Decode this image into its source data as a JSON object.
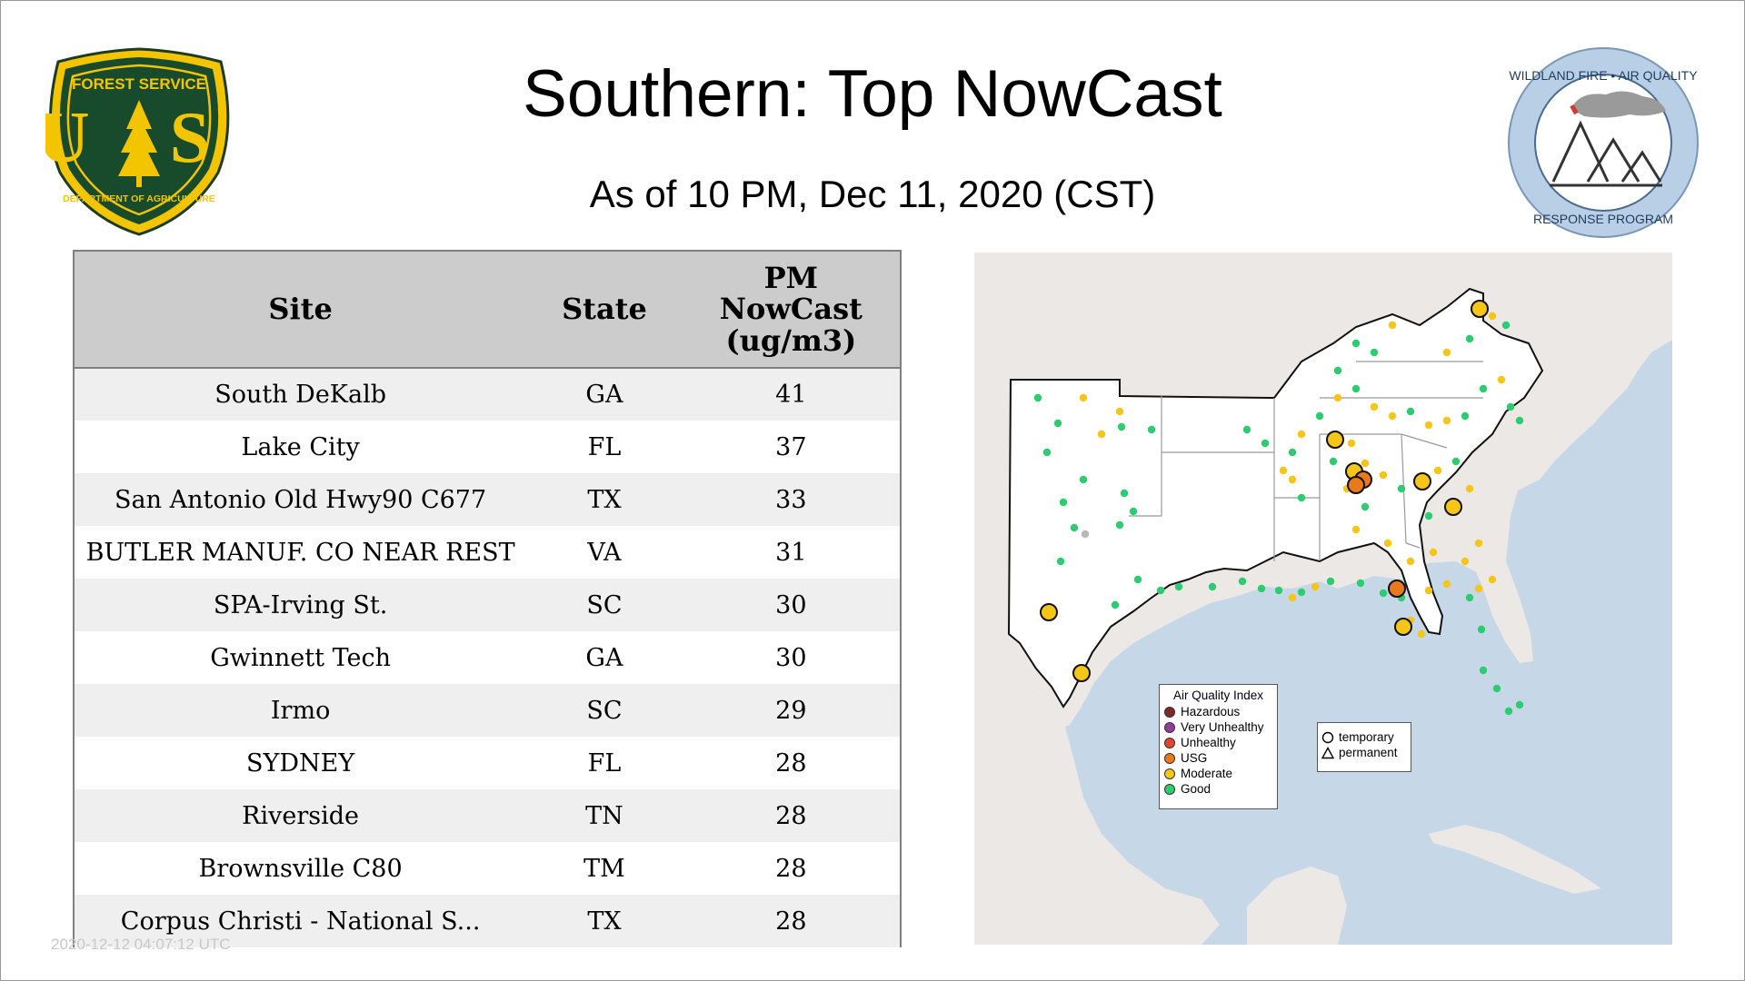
{
  "header": {
    "title": "Southern: Top NowCast",
    "subtitle": "As of 10 PM, Dec 11, 2020 (CST)"
  },
  "logos": {
    "forest_service": {
      "top_text": "FOREST SERVICE",
      "letters": "U S",
      "bottom_text": "DEPARTMENT OF AGRICULTURE"
    },
    "wildland_fire": {
      "top_text": "WILDLAND FIRE • AIR QUALITY",
      "bottom_text": "RESPONSE PROGRAM"
    }
  },
  "table": {
    "headers": {
      "site": "Site",
      "state": "State",
      "value": "PM NowCast (ug/m3)"
    },
    "rows": [
      {
        "site": "South DeKalb",
        "state": "GA",
        "value": "41"
      },
      {
        "site": "Lake City",
        "state": "FL",
        "value": "37"
      },
      {
        "site": "San Antonio Old Hwy90 C677",
        "state": "TX",
        "value": "33"
      },
      {
        "site": "BUTLER MANUF. CO NEAR REST",
        "state": "VA",
        "value": "31"
      },
      {
        "site": "SPA-Irving St.",
        "state": "SC",
        "value": "30"
      },
      {
        "site": "Gwinnett Tech",
        "state": "GA",
        "value": "30"
      },
      {
        "site": "Irmo",
        "state": "SC",
        "value": "29"
      },
      {
        "site": "SYDNEY",
        "state": "FL",
        "value": "28"
      },
      {
        "site": "Riverside",
        "state": "TN",
        "value": "28"
      },
      {
        "site": "Brownsville C80",
        "state": "TM",
        "value": "28"
      },
      {
        "site": "Corpus Christi - National S...",
        "state": "TX",
        "value": "28"
      }
    ]
  },
  "footer": {
    "timestamp": "2020-12-12 04:07:12 UTC"
  },
  "map": {
    "legend_title": "Air Quality Index",
    "aqi_categories": [
      {
        "label": "Hazardous",
        "color": "#7e2a2a"
      },
      {
        "label": "Very Unhealthy",
        "color": "#8f3f97"
      },
      {
        "label": "Unhealthy",
        "color": "#e0472f"
      },
      {
        "label": "USG",
        "color": "#e8791d"
      },
      {
        "label": "Moderate",
        "color": "#f5c518"
      },
      {
        "label": "Good",
        "color": "#2ecc71"
      }
    ],
    "shape_legend": [
      {
        "label": "temporary",
        "icon": "circle-outline-icon"
      },
      {
        "label": "permanent",
        "icon": "triangle-outline-icon"
      }
    ],
    "colors": {
      "ocean": "#c6d7e8",
      "land": "#ece8e5",
      "outlined_land": "#ffffff",
      "no_data": "#b8b8b8"
    }
  }
}
